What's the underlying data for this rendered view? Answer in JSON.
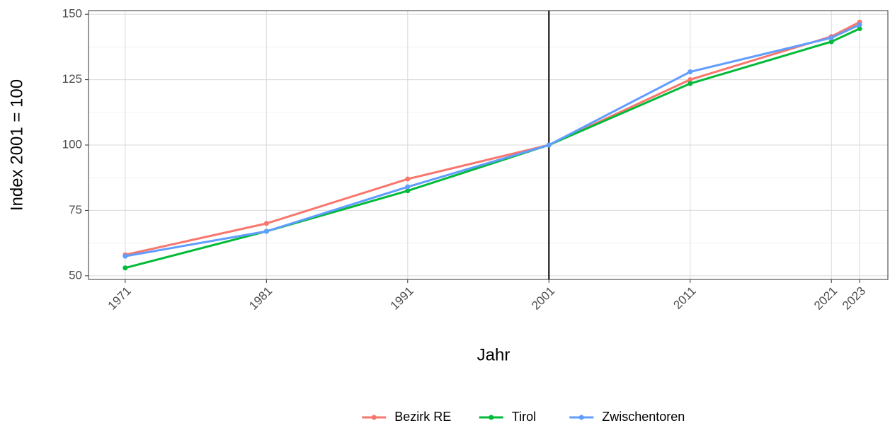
{
  "chart_data": {
    "type": "line",
    "x_label": "Jahr",
    "y_label": "Index 2001 = 100",
    "x": [
      1971,
      1981,
      1991,
      2001,
      2011,
      2021,
      2023
    ],
    "series": [
      {
        "name": "Bezirk RE",
        "color": "#F8766D",
        "values": [
          58,
          70,
          87,
          100,
          125,
          141.5,
          147
        ]
      },
      {
        "name": "Tirol",
        "color": "#00BA38",
        "values": [
          53,
          67,
          82.5,
          100,
          123.5,
          139.5,
          144.5
        ]
      },
      {
        "name": "Zwischentoren",
        "color": "#619CFF",
        "values": [
          57.5,
          67,
          84,
          100,
          128,
          141,
          146
        ]
      }
    ],
    "xlim": [
      1968.4,
      2025
    ],
    "xticks": [
      1971,
      1981,
      1991,
      2001,
      2011,
      2021,
      2023
    ],
    "ylim": [
      48.6,
      151.4
    ],
    "yticks": [
      50,
      75,
      100,
      125,
      150
    ],
    "vline": 2001,
    "grid": true,
    "legend": "bottom"
  }
}
